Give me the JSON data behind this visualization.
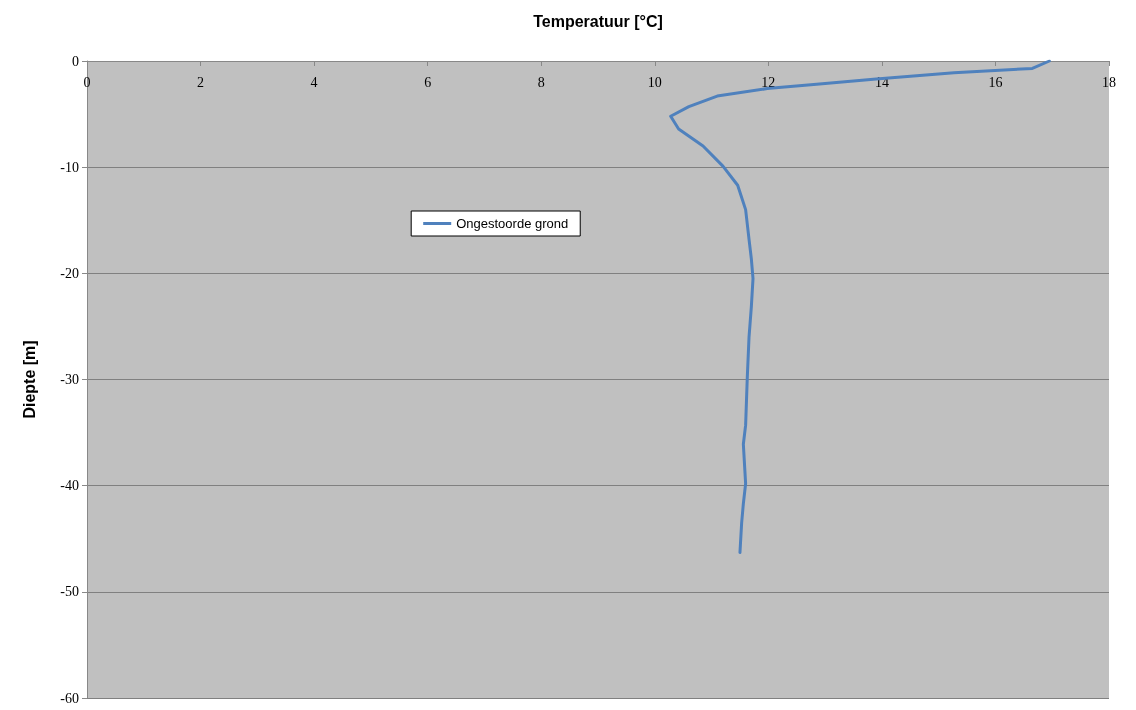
{
  "chart_data": {
    "type": "line",
    "xlabel": "Temperatuur [°C]",
    "ylabel": "Diepte [m]",
    "xlim": [
      0,
      18
    ],
    "xticks": [
      0,
      2,
      4,
      6,
      8,
      10,
      12,
      14,
      16,
      18
    ],
    "ylim": [
      -60,
      0
    ],
    "yticks": [
      -60,
      -50,
      -40,
      -30,
      -20,
      -10,
      0
    ],
    "grid": "y",
    "legend": "left",
    "marker": "none",
    "line_style": "solid",
    "series": [
      {
        "name": "Ongestoorde grond",
        "color": "#4f81bd",
        "x": [
          16.95,
          16.65,
          15.27,
          13.9,
          12.85,
          11.98,
          11.1,
          10.6,
          10.28,
          10.42,
          10.85,
          11.2,
          11.46,
          11.6,
          11.66,
          11.7,
          11.73,
          11.7,
          11.66,
          11.63,
          11.6,
          11.56,
          11.6,
          11.56,
          11.53,
          11.5
        ],
        "values": [
          0,
          -0.7,
          -1.1,
          -1.7,
          -2.2,
          -2.6,
          -3.3,
          -4.3,
          -5.2,
          -6.4,
          -8.0,
          -9.9,
          -11.7,
          -14,
          -16.8,
          -18.6,
          -20.5,
          -23.2,
          -26,
          -29.7,
          -34.3,
          -36.1,
          -39.8,
          -41.7,
          -43.5,
          -46.3
        ]
      }
    ]
  }
}
